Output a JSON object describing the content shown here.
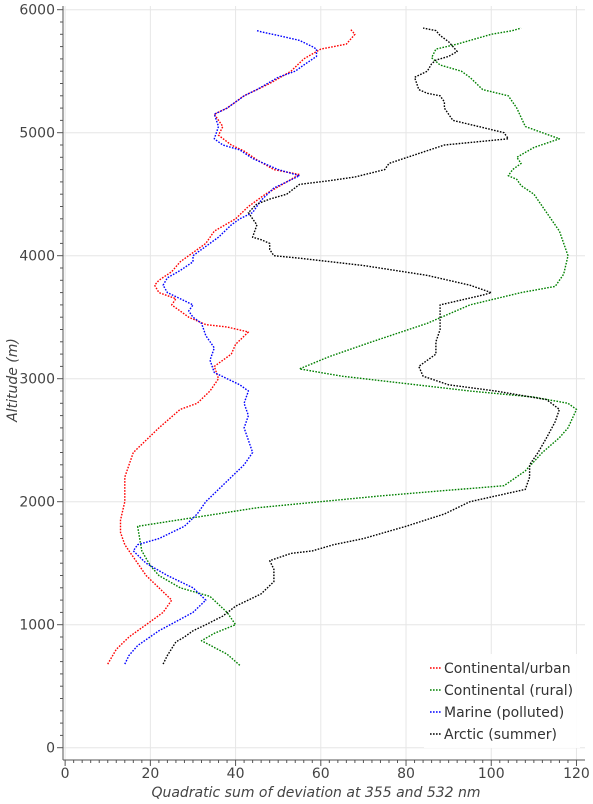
{
  "chart_data": {
    "type": "line",
    "xlabel": "Quadratic sum of deviation at 355 and 532 nm",
    "ylabel": "Altitude (m)",
    "xlim": [
      -0.5,
      122
    ],
    "ylim": [
      -100,
      6030
    ],
    "xticks": [
      0,
      20,
      40,
      60,
      80,
      100,
      120
    ],
    "yticks": [
      0,
      1000,
      2000,
      3000,
      4000,
      5000,
      6000
    ],
    "grid": true,
    "legend_position": "bottom-right",
    "series": [
      {
        "name": "Continental/urban",
        "color": "#ff0000",
        "points": [
          [
            10,
            680
          ],
          [
            12,
            800
          ],
          [
            15,
            900
          ],
          [
            19,
            1000
          ],
          [
            23,
            1100
          ],
          [
            25,
            1200
          ],
          [
            22,
            1300
          ],
          [
            19,
            1400
          ],
          [
            17,
            1500
          ],
          [
            15,
            1600
          ],
          [
            14,
            1650
          ],
          [
            13,
            1750
          ],
          [
            13,
            1850
          ],
          [
            14,
            2000
          ],
          [
            14,
            2200
          ],
          [
            16,
            2400
          ],
          [
            19,
            2500
          ],
          [
            22,
            2600
          ],
          [
            27,
            2750
          ],
          [
            31,
            2800
          ],
          [
            34,
            2900
          ],
          [
            36,
            3000
          ],
          [
            35,
            3100
          ],
          [
            39,
            3200
          ],
          [
            40,
            3280
          ],
          [
            43,
            3380
          ],
          [
            38,
            3420
          ],
          [
            33,
            3440
          ],
          [
            29,
            3500
          ],
          [
            27,
            3550
          ],
          [
            25,
            3600
          ],
          [
            26,
            3650
          ],
          [
            22,
            3700
          ],
          [
            21,
            3760
          ],
          [
            22,
            3800
          ],
          [
            25,
            3870
          ],
          [
            27,
            3950
          ],
          [
            29,
            4000
          ],
          [
            33,
            4100
          ],
          [
            35,
            4200
          ],
          [
            40,
            4300
          ],
          [
            43,
            4400
          ],
          [
            47,
            4500
          ],
          [
            52,
            4600
          ],
          [
            55,
            4660
          ],
          [
            49,
            4700
          ],
          [
            45,
            4780
          ],
          [
            42,
            4850
          ],
          [
            39,
            4900
          ],
          [
            36,
            4980
          ],
          [
            37,
            5050
          ],
          [
            35,
            5150
          ],
          [
            38,
            5200
          ],
          [
            42,
            5300
          ],
          [
            48,
            5400
          ],
          [
            53,
            5500
          ],
          [
            56,
            5600
          ],
          [
            60,
            5680
          ],
          [
            66,
            5720
          ],
          [
            67,
            5760
          ],
          [
            68,
            5800
          ],
          [
            67,
            5840
          ]
        ]
      },
      {
        "name": "Continental (rural)",
        "color": "#008000",
        "points": [
          [
            41,
            670
          ],
          [
            38,
            760
          ],
          [
            32,
            870
          ],
          [
            35,
            930
          ],
          [
            40,
            1000
          ],
          [
            38,
            1100
          ],
          [
            34,
            1230
          ],
          [
            27,
            1300
          ],
          [
            22,
            1400
          ],
          [
            20,
            1480
          ],
          [
            18,
            1600
          ],
          [
            17,
            1800
          ],
          [
            45,
            1950
          ],
          [
            75,
            2050
          ],
          [
            103,
            2130
          ],
          [
            108,
            2250
          ],
          [
            112,
            2400
          ],
          [
            116,
            2520
          ],
          [
            118,
            2600
          ],
          [
            120,
            2750
          ],
          [
            118,
            2800
          ],
          [
            110,
            2850
          ],
          [
            95,
            2900
          ],
          [
            80,
            2960
          ],
          [
            65,
            3020
          ],
          [
            55,
            3080
          ],
          [
            62,
            3180
          ],
          [
            72,
            3300
          ],
          [
            85,
            3450
          ],
          [
            95,
            3600
          ],
          [
            107,
            3700
          ],
          [
            115,
            3750
          ],
          [
            117,
            3850
          ],
          [
            118,
            4000
          ],
          [
            117,
            4100
          ],
          [
            116,
            4200
          ],
          [
            114,
            4300
          ],
          [
            112,
            4400
          ],
          [
            110,
            4500
          ],
          [
            107,
            4570
          ],
          [
            106,
            4620
          ],
          [
            104,
            4650
          ],
          [
            105,
            4700
          ],
          [
            107,
            4750
          ],
          [
            106,
            4800
          ],
          [
            110,
            4880
          ],
          [
            116,
            4950
          ],
          [
            112,
            5000
          ],
          [
            108,
            5050
          ],
          [
            106,
            5200
          ],
          [
            104,
            5300
          ],
          [
            98,
            5350
          ],
          [
            95,
            5450
          ],
          [
            93,
            5500
          ],
          [
            88,
            5550
          ],
          [
            86,
            5610
          ],
          [
            87,
            5680
          ],
          [
            92,
            5720
          ],
          [
            96,
            5760
          ],
          [
            100,
            5800
          ],
          [
            105,
            5830
          ],
          [
            107,
            5850
          ]
        ]
      },
      {
        "name": "Marine (polluted)",
        "color": "#0000ff",
        "points": [
          [
            14,
            680
          ],
          [
            15,
            750
          ],
          [
            17,
            830
          ],
          [
            22,
            950
          ],
          [
            30,
            1100
          ],
          [
            33,
            1200
          ],
          [
            30,
            1300
          ],
          [
            24,
            1400
          ],
          [
            19,
            1500
          ],
          [
            16,
            1600
          ],
          [
            17,
            1650
          ],
          [
            22,
            1700
          ],
          [
            28,
            1800
          ],
          [
            31,
            1900
          ],
          [
            33,
            2000
          ],
          [
            36,
            2100
          ],
          [
            39,
            2200
          ],
          [
            42,
            2300
          ],
          [
            44,
            2400
          ],
          [
            43,
            2500
          ],
          [
            42,
            2600
          ],
          [
            43,
            2700
          ],
          [
            42,
            2800
          ],
          [
            43,
            2900
          ],
          [
            41,
            2950
          ],
          [
            38,
            3000
          ],
          [
            35,
            3050
          ],
          [
            34,
            3150
          ],
          [
            35,
            3250
          ],
          [
            33,
            3350
          ],
          [
            32,
            3450
          ],
          [
            30,
            3500
          ],
          [
            29,
            3550
          ],
          [
            30,
            3600
          ],
          [
            27,
            3650
          ],
          [
            24,
            3700
          ],
          [
            23,
            3760
          ],
          [
            24,
            3820
          ],
          [
            27,
            3880
          ],
          [
            30,
            3950
          ],
          [
            30,
            4000
          ],
          [
            32,
            4050
          ],
          [
            36,
            4150
          ],
          [
            39,
            4250
          ],
          [
            41,
            4300
          ],
          [
            44,
            4350
          ],
          [
            46,
            4450
          ],
          [
            49,
            4550
          ],
          [
            52,
            4600
          ],
          [
            55,
            4650
          ],
          [
            50,
            4700
          ],
          [
            44,
            4790
          ],
          [
            41,
            4860
          ],
          [
            37,
            4900
          ],
          [
            35,
            4950
          ],
          [
            36,
            5050
          ],
          [
            35,
            5150
          ],
          [
            38,
            5200
          ],
          [
            42,
            5300
          ],
          [
            45,
            5350
          ],
          [
            50,
            5450
          ],
          [
            54,
            5500
          ],
          [
            56,
            5550
          ],
          [
            59,
            5620
          ],
          [
            59,
            5680
          ],
          [
            58,
            5700
          ],
          [
            55,
            5750
          ],
          [
            50,
            5790
          ],
          [
            46,
            5820
          ],
          [
            45,
            5830
          ]
        ]
      },
      {
        "name": "Arctic (summer)",
        "color": "#000000",
        "points": [
          [
            23,
            680
          ],
          [
            24,
            750
          ],
          [
            26,
            860
          ],
          [
            28,
            900
          ],
          [
            30,
            950
          ],
          [
            33,
            1000
          ],
          [
            37,
            1070
          ],
          [
            40,
            1150
          ],
          [
            46,
            1250
          ],
          [
            49,
            1350
          ],
          [
            49,
            1450
          ],
          [
            48,
            1520
          ],
          [
            53,
            1580
          ],
          [
            58,
            1600
          ],
          [
            63,
            1650
          ],
          [
            70,
            1700
          ],
          [
            80,
            1800
          ],
          [
            89,
            1900
          ],
          [
            95,
            2000
          ],
          [
            108,
            2100
          ],
          [
            109,
            2200
          ],
          [
            109,
            2300
          ],
          [
            111,
            2400
          ],
          [
            113,
            2520
          ],
          [
            115,
            2650
          ],
          [
            116,
            2750
          ],
          [
            113,
            2830
          ],
          [
            101,
            2900
          ],
          [
            90,
            2950
          ],
          [
            84,
            3020
          ],
          [
            83,
            3100
          ],
          [
            87,
            3200
          ],
          [
            87,
            3300
          ],
          [
            88,
            3400
          ],
          [
            88,
            3500
          ],
          [
            88,
            3600
          ],
          [
            98,
            3680
          ],
          [
            100,
            3700
          ],
          [
            95,
            3760
          ],
          [
            85,
            3840
          ],
          [
            70,
            3920
          ],
          [
            55,
            3980
          ],
          [
            49,
            4000
          ],
          [
            48,
            4050
          ],
          [
            48,
            4100
          ],
          [
            46,
            4130
          ],
          [
            44,
            4150
          ],
          [
            45,
            4250
          ],
          [
            44,
            4300
          ],
          [
            43,
            4350
          ],
          [
            45,
            4420
          ],
          [
            48,
            4460
          ],
          [
            52,
            4500
          ],
          [
            55,
            4580
          ],
          [
            62,
            4610
          ],
          [
            68,
            4640
          ],
          [
            75,
            4700
          ],
          [
            76,
            4750
          ],
          [
            89,
            4900
          ],
          [
            104,
            4950
          ],
          [
            103,
            5000
          ],
          [
            97,
            5050
          ],
          [
            91,
            5100
          ],
          [
            89,
            5200
          ],
          [
            89,
            5250
          ],
          [
            88,
            5300
          ],
          [
            85,
            5320
          ],
          [
            83,
            5350
          ],
          [
            82,
            5450
          ],
          [
            85,
            5500
          ],
          [
            86,
            5560
          ],
          [
            87,
            5590
          ],
          [
            90,
            5620
          ],
          [
            92,
            5660
          ],
          [
            91,
            5700
          ],
          [
            90,
            5740
          ],
          [
            88,
            5790
          ],
          [
            87,
            5830
          ],
          [
            84,
            5850
          ]
        ]
      }
    ]
  }
}
